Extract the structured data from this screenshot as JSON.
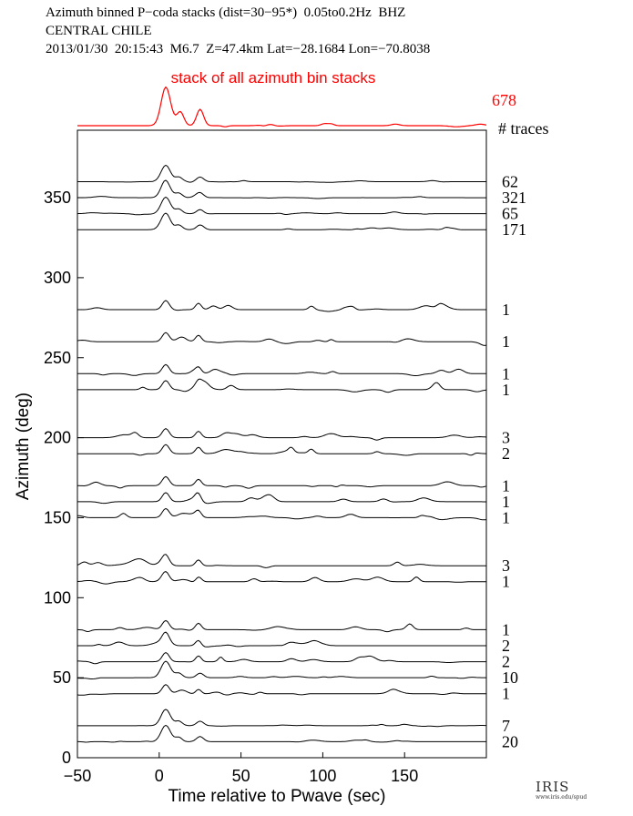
{
  "header": {
    "line1": "Azimuth binned P−coda stacks (dist=30−95*)  0.05to0.2Hz  BHZ",
    "line2": "CENTRAL CHILE",
    "line3": "2013/01/30  20:15:43  M6.7  Z=47.4km Lat=−28.1684 Lon=−70.8038"
  },
  "logo": {
    "text": "IRIS",
    "url_text": "www.iris.edu/spud"
  },
  "chart_data": {
    "type": "line",
    "title": "stack of all azimuth bin stacks",
    "total_traces": "678",
    "traces_label": "# traces",
    "xlabel": "Time relative to Pwave (sec)",
    "ylabel": "Azimuth (deg)",
    "xlim": [
      -50,
      200
    ],
    "ylim": [
      0,
      385
    ],
    "x_ticks": [
      -50,
      0,
      50,
      100,
      150
    ],
    "y_ticks": [
      0,
      50,
      100,
      150,
      200,
      250,
      300,
      350
    ],
    "colors": {
      "stack": "#ff0000",
      "trace": "#000000",
      "axis": "#000000"
    },
    "traces": [
      {
        "azimuth": 360,
        "count": "62"
      },
      {
        "azimuth": 350,
        "count": "321"
      },
      {
        "azimuth": 340,
        "count": "65"
      },
      {
        "azimuth": 330,
        "count": "171"
      },
      {
        "azimuth": 280,
        "count": "1"
      },
      {
        "azimuth": 260,
        "count": "1"
      },
      {
        "azimuth": 240,
        "count": "1"
      },
      {
        "azimuth": 230,
        "count": "1"
      },
      {
        "azimuth": 200,
        "count": "3"
      },
      {
        "azimuth": 190,
        "count": "2"
      },
      {
        "azimuth": 170,
        "count": "1"
      },
      {
        "azimuth": 160,
        "count": "1"
      },
      {
        "azimuth": 150,
        "count": "1"
      },
      {
        "azimuth": 120,
        "count": "3"
      },
      {
        "azimuth": 110,
        "count": "1"
      },
      {
        "azimuth": 80,
        "count": "1"
      },
      {
        "azimuth": 70,
        "count": "2"
      },
      {
        "azimuth": 60,
        "count": "2"
      },
      {
        "azimuth": 50,
        "count": "10"
      },
      {
        "azimuth": 40,
        "count": "1"
      },
      {
        "azimuth": 20,
        "count": "7"
      },
      {
        "azimuth": 10,
        "count": "20"
      }
    ]
  }
}
